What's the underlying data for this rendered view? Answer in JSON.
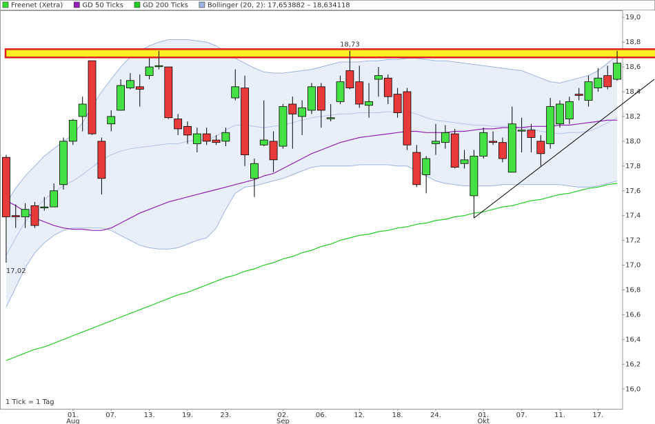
{
  "chart_data": {
    "type": "candlestick",
    "categories": [
      null,
      null,
      null,
      null,
      null,
      null,
      null,
      "01.",
      null,
      null,
      null,
      "07.",
      null,
      null,
      null,
      "13.",
      null,
      null,
      null,
      "19.",
      null,
      null,
      null,
      "23.",
      null,
      null,
      null,
      null,
      null,
      "02.",
      null,
      null,
      null,
      "06.",
      null,
      null,
      null,
      "12.",
      null,
      null,
      null,
      "18.",
      null,
      null,
      null,
      "24.",
      null,
      null,
      null,
      null,
      "01.",
      null,
      null,
      null,
      "07.",
      null,
      null,
      null,
      "11.",
      null,
      null,
      null,
      "17.",
      null,
      null
    ],
    "month_labels": [
      null,
      null,
      null,
      null,
      null,
      null,
      null,
      "Aug",
      null,
      null,
      null,
      null,
      null,
      null,
      null,
      null,
      null,
      null,
      null,
      null,
      null,
      null,
      null,
      null,
      null,
      null,
      null,
      null,
      null,
      "Sep",
      null,
      null,
      null,
      null,
      null,
      null,
      null,
      null,
      null,
      null,
      null,
      null,
      null,
      null,
      null,
      null,
      null,
      null,
      null,
      null,
      "Okt",
      null,
      null,
      null,
      null,
      null,
      null,
      null,
      null,
      null,
      null,
      null,
      null,
      null,
      null
    ],
    "candles": {
      "name": "Freenet (Xetra)",
      "color": "#33dd33",
      "color_up": "#44e044",
      "color_down": "#e83a3a",
      "open": [
        17.87,
        17.4,
        17.39,
        17.48,
        17.47,
        17.47,
        17.65,
        18.0,
        18.2,
        18.65,
        18.0,
        18.14,
        18.25,
        18.43,
        18.44,
        18.53,
        18.61,
        18.6,
        18.18,
        18.12,
        17.98,
        18.06,
        18.01,
        18.0,
        18.35,
        18.43,
        17.7,
        17.97,
        18.0,
        17.96,
        18.3,
        18.2,
        18.25,
        18.44,
        18.19,
        18.32,
        18.57,
        18.48,
        18.29,
        18.5,
        18.51,
        18.38,
        18.4,
        17.91,
        17.73,
        17.98,
        17.99,
        18.06,
        17.82,
        17.56,
        17.88,
        18.0,
        17.99,
        17.75,
        18.09,
        18.09,
        18.0,
        17.98,
        18.14,
        18.18,
        18.38,
        18.33,
        18.43,
        18.53,
        18.5
      ],
      "high": [
        17.89,
        17.49,
        17.5,
        17.51,
        17.55,
        17.66,
        18.03,
        18.18,
        18.36,
        18.65,
        18.03,
        18.25,
        18.5,
        18.55,
        18.54,
        18.67,
        18.73,
        18.6,
        18.22,
        18.16,
        18.11,
        18.11,
        18.05,
        18.11,
        18.58,
        18.53,
        17.86,
        18.33,
        18.08,
        18.3,
        18.36,
        18.33,
        18.47,
        18.47,
        18.3,
        18.53,
        18.73,
        18.61,
        18.47,
        18.6,
        18.54,
        18.43,
        18.43,
        17.97,
        17.88,
        18.14,
        18.13,
        18.1,
        17.93,
        17.93,
        18.11,
        18.08,
        18.03,
        18.28,
        18.19,
        18.14,
        18.05,
        18.35,
        18.33,
        18.36,
        18.43,
        18.53,
        18.59,
        18.61,
        18.73
      ],
      "low": [
        17.02,
        17.3,
        17.3,
        17.3,
        17.44,
        17.47,
        17.61,
        17.97,
        18.08,
        18.05,
        17.57,
        18.08,
        18.25,
        18.42,
        18.28,
        18.5,
        18.58,
        18.18,
        18.05,
        17.98,
        17.91,
        17.97,
        17.97,
        17.96,
        18.33,
        17.8,
        17.55,
        17.96,
        17.75,
        17.94,
        17.94,
        18.05,
        18.22,
        18.11,
        18.16,
        18.3,
        18.42,
        18.27,
        18.19,
        18.36,
        18.3,
        18.19,
        17.93,
        17.63,
        17.58,
        17.89,
        17.94,
        17.78,
        17.78,
        17.38,
        17.86,
        17.97,
        17.83,
        17.75,
        17.91,
        17.91,
        17.8,
        17.94,
        18.11,
        18.14,
        18.33,
        18.28,
        18.4,
        18.42,
        18.49
      ],
      "close": [
        17.39,
        17.39,
        17.45,
        17.32,
        17.47,
        17.6,
        18.0,
        18.17,
        18.3,
        18.06,
        17.7,
        18.2,
        18.45,
        18.49,
        18.42,
        18.6,
        18.61,
        18.19,
        18.1,
        18.05,
        18.06,
        18.0,
        17.99,
        18.07,
        18.44,
        17.89,
        17.82,
        18.01,
        17.85,
        18.28,
        18.22,
        18.27,
        18.44,
        18.25,
        18.19,
        18.48,
        18.43,
        18.3,
        18.32,
        18.53,
        18.36,
        18.23,
        17.97,
        17.65,
        17.86,
        18.0,
        18.07,
        17.79,
        17.85,
        17.88,
        18.07,
        17.99,
        17.86,
        18.14,
        18.09,
        18.03,
        17.9,
        18.28,
        18.3,
        18.32,
        18.37,
        18.48,
        18.51,
        18.44,
        18.63
      ]
    },
    "series": [
      {
        "name": "GD 50 Ticks",
        "color": "#9020b8",
        "values": [
          17.52,
          17.48,
          17.43,
          17.38,
          17.35,
          17.32,
          17.3,
          17.29,
          17.29,
          17.28,
          17.28,
          17.3,
          17.34,
          17.38,
          17.42,
          17.45,
          17.48,
          17.51,
          17.53,
          17.55,
          17.57,
          17.59,
          17.61,
          17.63,
          17.65,
          17.67,
          17.69,
          17.72,
          17.74,
          17.78,
          17.82,
          17.86,
          17.9,
          17.93,
          17.96,
          17.99,
          18.01,
          18.03,
          18.04,
          18.05,
          18.06,
          18.07,
          18.08,
          18.08,
          18.07,
          18.07,
          18.07,
          18.08,
          18.08,
          18.09,
          18.1,
          18.1,
          18.11,
          18.11,
          18.11,
          18.12,
          18.12,
          18.12,
          18.13,
          18.13,
          18.14,
          18.15,
          18.16,
          18.17,
          18.17
        ]
      },
      {
        "name": "GD 200 Ticks",
        "color": "#22cc22",
        "values": [
          16.23,
          16.26,
          16.29,
          16.32,
          16.34,
          16.37,
          16.4,
          16.43,
          16.46,
          16.49,
          16.52,
          16.55,
          16.58,
          16.61,
          16.64,
          16.67,
          16.7,
          16.73,
          16.76,
          16.78,
          16.81,
          16.84,
          16.87,
          16.9,
          16.92,
          16.95,
          16.97,
          17.0,
          17.02,
          17.05,
          17.07,
          17.1,
          17.12,
          17.15,
          17.17,
          17.2,
          17.22,
          17.24,
          17.25,
          17.27,
          17.28,
          17.3,
          17.31,
          17.33,
          17.34,
          17.36,
          17.37,
          17.39,
          17.4,
          17.42,
          17.43,
          17.45,
          17.47,
          17.48,
          17.5,
          17.52,
          17.53,
          17.55,
          17.57,
          17.58,
          17.6,
          17.62,
          17.63,
          17.65,
          17.66
        ]
      },
      {
        "name": "Bollinger (20, 2): 17,653882 – 18,634118",
        "color": "#9db4e0",
        "fill": "#e9eff9",
        "upper": [
          17.5,
          17.62,
          17.72,
          17.8,
          17.88,
          17.94,
          18.0,
          18.05,
          18.15,
          18.28,
          18.4,
          18.5,
          18.6,
          18.68,
          18.73,
          18.77,
          18.8,
          18.82,
          18.82,
          18.82,
          18.81,
          18.8,
          18.77,
          18.72,
          18.67,
          18.63,
          18.59,
          18.56,
          18.55,
          18.55,
          18.56,
          18.57,
          18.58,
          18.6,
          18.62,
          18.64,
          18.64,
          18.64,
          18.65,
          18.65,
          18.66,
          18.66,
          18.67,
          18.67,
          18.66,
          18.65,
          18.65,
          18.64,
          18.63,
          18.62,
          18.61,
          18.6,
          18.59,
          18.58,
          18.57,
          18.54,
          18.51,
          18.48,
          18.47,
          18.49,
          18.51,
          18.53,
          18.57,
          18.63,
          18.69
        ],
        "lower": [
          16.66,
          16.82,
          16.98,
          17.1,
          17.18,
          17.24,
          17.28,
          17.3,
          17.3,
          17.3,
          17.3,
          17.28,
          17.24,
          17.2,
          17.16,
          17.14,
          17.13,
          17.13,
          17.14,
          17.17,
          17.2,
          17.22,
          17.3,
          17.45,
          17.58,
          17.63,
          17.64,
          17.66,
          17.68,
          17.7,
          17.73,
          17.76,
          17.79,
          17.8,
          17.8,
          17.8,
          17.8,
          17.81,
          17.81,
          17.81,
          17.81,
          17.8,
          17.8,
          17.76,
          17.72,
          17.68,
          17.66,
          17.65,
          17.64,
          17.64,
          17.64,
          17.64,
          17.65,
          17.65,
          17.65,
          17.65,
          17.65,
          17.65,
          17.65,
          17.64,
          17.63,
          17.63,
          17.64,
          17.66,
          17.68
        ],
        "values": [
          17.08,
          17.22,
          17.35,
          17.45,
          17.53,
          17.59,
          17.64,
          17.68,
          17.73,
          17.79,
          17.85,
          17.89,
          17.92,
          17.94,
          17.95,
          17.96,
          17.97,
          17.98,
          17.98,
          18.0,
          18.01,
          18.01,
          18.04,
          18.09,
          18.13,
          18.13,
          18.12,
          18.11,
          18.12,
          18.13,
          18.15,
          18.17,
          18.19,
          18.2,
          18.21,
          18.22,
          18.22,
          18.23,
          18.23,
          18.23,
          18.24,
          18.23,
          18.24,
          18.22,
          18.19,
          18.17,
          18.16,
          18.15,
          18.14,
          18.13,
          18.13,
          18.12,
          18.12,
          18.12,
          18.11,
          18.1,
          18.08,
          18.07,
          18.06,
          18.07,
          18.07,
          18.08,
          18.11,
          18.15,
          18.19
        ]
      }
    ],
    "high_label": {
      "index": 36,
      "label": "18,73"
    },
    "low_label": {
      "index": 0,
      "label": "17,02"
    },
    "trendline": {
      "x": [
        49,
        67.9
      ],
      "y": [
        17.38,
        18.5
      ],
      "color": "#000000"
    },
    "resistance": {
      "value": 18.71,
      "fill": "#ffee22",
      "color": "#e02020"
    },
    "footnote": "1 Tick = 1 Tag",
    "ylim": [
      15.84,
      19.04
    ],
    "yticks": [
      {
        "value": 16,
        "label": "16,0"
      },
      {
        "value": 16.2,
        "label": "16,2"
      },
      {
        "value": 16.4,
        "label": "16,4"
      },
      {
        "value": 16.6,
        "label": "16,6"
      },
      {
        "value": 16.8,
        "label": "16,8"
      },
      {
        "value": 17,
        "label": "17,0"
      },
      {
        "value": 17.2,
        "label": "17,2"
      },
      {
        "value": 17.4,
        "label": "17,4"
      },
      {
        "value": 17.6,
        "label": "17,6"
      },
      {
        "value": 17.8,
        "label": "17,8"
      },
      {
        "value": 18,
        "label": "18,0"
      },
      {
        "value": 18.2,
        "label": "18,2"
      },
      {
        "value": 18.4,
        "label": "18,4"
      },
      {
        "value": 18.6,
        "label": "18,6"
      },
      {
        "value": 18.8,
        "label": "18,8"
      },
      {
        "value": 19,
        "label": "19,0"
      }
    ],
    "grid": false
  }
}
